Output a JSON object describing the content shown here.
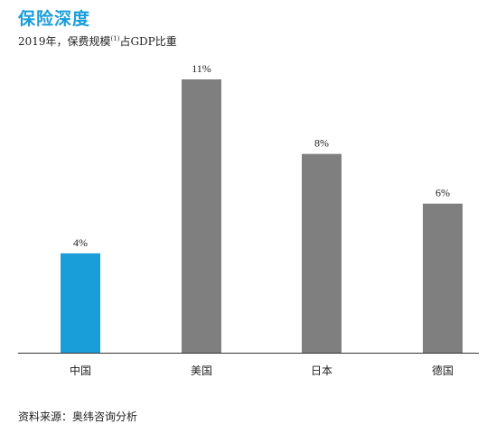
{
  "chart_data": {
    "type": "bar",
    "title": "保险深度",
    "subtitle_prefix": "2019年，保费规模",
    "subtitle_note": "(1)",
    "subtitle_suffix": "占GDP比重",
    "categories": [
      "中国",
      "美国",
      "日本",
      "德国"
    ],
    "values": [
      4,
      11,
      8,
      6
    ],
    "value_labels": [
      "4%",
      "11%",
      "8%",
      "6%"
    ],
    "bar_colors": [
      "#1a9ed9",
      "#7f7f7f",
      "#7f7f7f",
      "#7f7f7f"
    ],
    "ylim": [
      0,
      11
    ],
    "xlabel": "",
    "ylabel": "",
    "grid": false
  },
  "footer": {
    "source": "资料来源：奥纬咨询分析"
  }
}
